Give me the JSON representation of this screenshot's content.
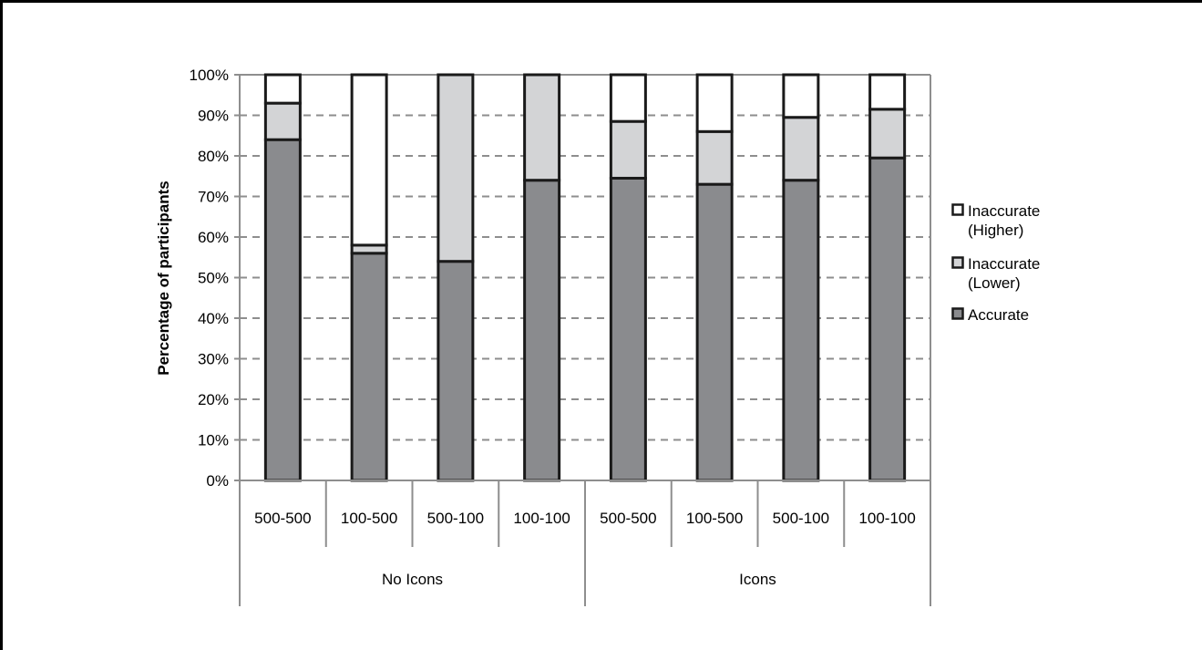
{
  "colors": {
    "accurate": "#8a8b8e",
    "inaccurate_lower": "#d3d4d6",
    "inaccurate_higher": "#ffffff",
    "outline": "#1a1a1a",
    "grid": "#8e8e8e"
  },
  "chart_data": {
    "type": "bar",
    "stacked": true,
    "ylabel": "Percentage of participants",
    "ylim": [
      0,
      100
    ],
    "yticks": [
      0,
      10,
      20,
      30,
      40,
      50,
      60,
      70,
      80,
      90,
      100
    ],
    "ytick_labels": [
      "0%",
      "10%",
      "20%",
      "30%",
      "40%",
      "50%",
      "60%",
      "70%",
      "80%",
      "90%",
      "100%"
    ],
    "grid": "horizontal dashed",
    "legend_position": "right",
    "categories": [
      "500-500",
      "100-500",
      "500-100",
      "100-100",
      "500-500",
      "100-500",
      "500-100",
      "100-100"
    ],
    "groups": [
      {
        "label": "No Icons",
        "categories": [
          "500-500",
          "100-500",
          "500-100",
          "100-100"
        ]
      },
      {
        "label": "Icons",
        "categories": [
          "500-500",
          "100-500",
          "500-100",
          "100-100"
        ]
      }
    ],
    "series": [
      {
        "name": "Accurate",
        "color_key": "accurate",
        "values": [
          84,
          56,
          54,
          74,
          74.5,
          73,
          74,
          79.5
        ]
      },
      {
        "name": "Inaccurate (Lower)",
        "color_key": "inaccurate_lower",
        "values": [
          9,
          2,
          46,
          26,
          14,
          13,
          15.5,
          12
        ]
      },
      {
        "name": "Inaccurate (Higher)",
        "color_key": "inaccurate_higher",
        "values": [
          7,
          42,
          0,
          0,
          11.5,
          14,
          10.5,
          8.5
        ]
      }
    ],
    "legend": [
      {
        "lines": [
          "Inaccurate",
          "(Higher)"
        ],
        "color_key": "inaccurate_higher"
      },
      {
        "lines": [
          "Inaccurate",
          "(Lower)"
        ],
        "color_key": "inaccurate_lower"
      },
      {
        "lines": [
          "Accurate"
        ],
        "color_key": "accurate"
      }
    ]
  }
}
